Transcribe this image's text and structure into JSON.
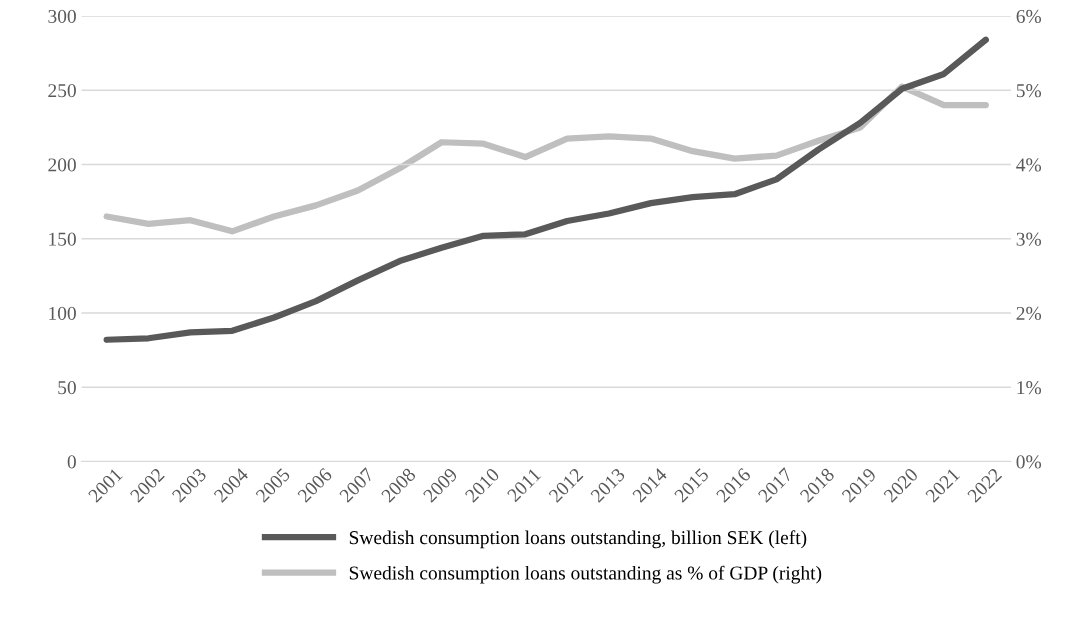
{
  "chart_data": {
    "type": "line",
    "categories": [
      "2001",
      "2002",
      "2003",
      "2004",
      "2005",
      "2006",
      "2007",
      "2008",
      "2009",
      "2010",
      "2011",
      "2012",
      "2013",
      "2014",
      "2015",
      "2016",
      "2017",
      "2018",
      "2019",
      "2020",
      "2021",
      "2022"
    ],
    "series": [
      {
        "name": "Swedish consumption loans outstanding, billion SEK (left)",
        "color": "#595959",
        "values": [
          82,
          83,
          87,
          88,
          97,
          108,
          122,
          135,
          144,
          152,
          153,
          162,
          167,
          174,
          178,
          180,
          190,
          210,
          228,
          251,
          261,
          284
        ]
      },
      {
        "name": "Swedish consumption loans outstanding as % of GDP (right)",
        "color": "#bfbfbf",
        "axis": "y2",
        "values": [
          3.3,
          3.2,
          3.25,
          3.1,
          3.3,
          3.45,
          3.65,
          3.95,
          4.3,
          4.28,
          4.1,
          4.35,
          4.38,
          4.35,
          4.18,
          4.08,
          4.12,
          4.32,
          4.5,
          5.05,
          4.8,
          4.8
        ]
      }
    ],
    "ylim": [
      0,
      300
    ],
    "yticks": [
      0,
      50,
      100,
      150,
      200,
      250,
      300
    ],
    "y2lim": [
      0,
      6
    ],
    "y2ticks": [
      {
        "value": 0,
        "label": "0%"
      },
      {
        "value": 1,
        "label": "1%"
      },
      {
        "value": 2,
        "label": "2%"
      },
      {
        "value": 3,
        "label": "3%"
      },
      {
        "value": 4,
        "label": "4%"
      },
      {
        "value": 5,
        "label": "5%"
      },
      {
        "value": 6,
        "label": "6%"
      }
    ],
    "grid": "y",
    "legend": "bottom",
    "marker": "none",
    "line_style": "solid"
  }
}
